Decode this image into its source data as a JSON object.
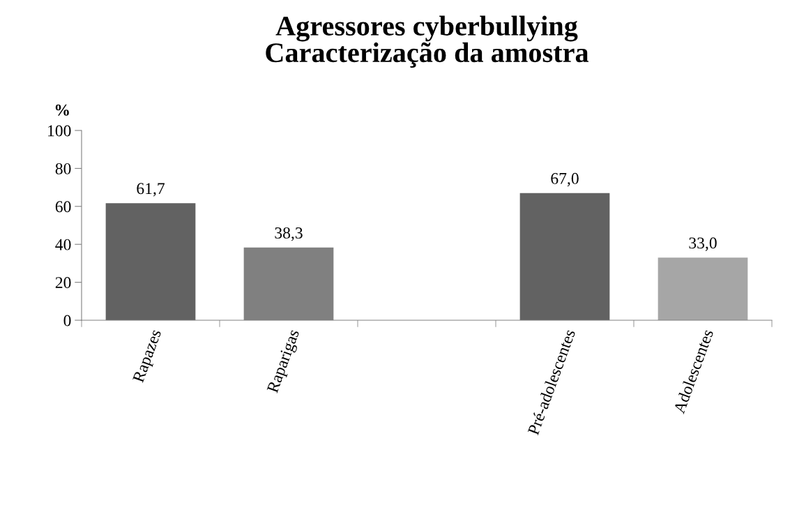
{
  "chart_data": {
    "type": "bar",
    "title": "Agressores cyberbullying\nCaracterização da amostra",
    "ylabel": "%",
    "categories": [
      "Rapazes",
      "Raparigas",
      null,
      "Pré-adolescentes",
      "Adolescentes"
    ],
    "values": [
      61.7,
      38.3,
      null,
      67.0,
      33.0
    ],
    "colors": [
      "#626262",
      "#808080",
      null,
      "#626262",
      "#a6a6a6"
    ],
    "value_labels": [
      "61,7",
      "38,3",
      null,
      "67,0",
      "33,0"
    ],
    "ylim": [
      0,
      100
    ],
    "yticks": [
      0,
      20,
      40,
      60,
      80,
      100
    ],
    "grid": false,
    "legend": false
  }
}
